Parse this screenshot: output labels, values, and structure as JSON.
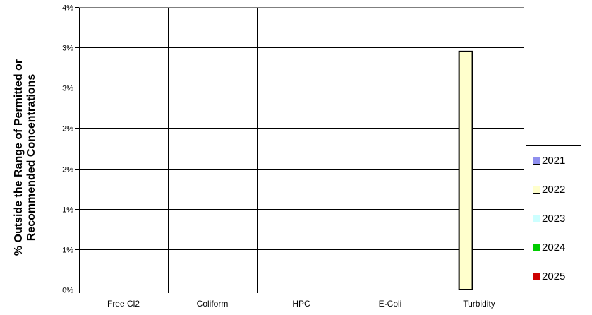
{
  "chart_data": {
    "type": "bar",
    "title": "",
    "xlabel": "",
    "ylabel_lines": [
      "% Outside the Range of Permitted or",
      "Recommended Concentrations"
    ],
    "categories": [
      "Free Cl2",
      "Coliform",
      "HPC",
      "E-Coli",
      "Turbidity"
    ],
    "ylim": [
      0,
      3.5
    ],
    "ytick_labels": [
      "0%",
      "1%",
      "1%",
      "2%",
      "2%",
      "3%",
      "3%",
      "4%"
    ],
    "grid": true,
    "legend_position": "right",
    "series": [
      {
        "name": "2021",
        "color": "#8f8fee",
        "values": [
          0,
          0,
          0,
          0,
          0
        ]
      },
      {
        "name": "2022",
        "color": "#ffffcc",
        "values": [
          0,
          0,
          0,
          0,
          2.95
        ]
      },
      {
        "name": "2023",
        "color": "#ccffff",
        "values": [
          0,
          0,
          0,
          0,
          0
        ]
      },
      {
        "name": "2024",
        "color": "#00cc00",
        "values": [
          0,
          0,
          0,
          0,
          0
        ]
      },
      {
        "name": "2025",
        "color": "#cc0000",
        "values": [
          0,
          0,
          0,
          0,
          0
        ]
      }
    ]
  }
}
